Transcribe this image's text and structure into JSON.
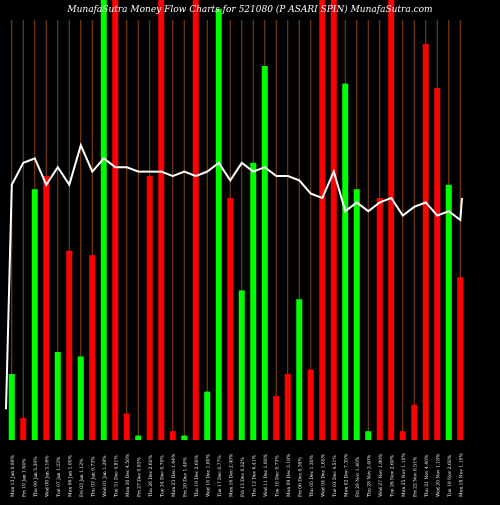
{
  "chart_data": {
    "type": "bar",
    "title": "MunafaSutra  Money Flow  Charts for 521080                    (P                    ASARI SPIN) MunafaSutra.com",
    "xlabel": "",
    "ylabel": "",
    "ylim": [
      0,
      100
    ],
    "grid": true,
    "legend": "none",
    "colors": {
      "up": "#00ff00",
      "down": "#ff0000",
      "line": "#ffffff",
      "grid": "#8b4513",
      "background": "#000000",
      "text": "#ffffff"
    },
    "categories": [
      "Mon 13 Jan 0.99%",
      "Fri 10 Jan 1.64%",
      "Thu 09 Jan 5.20%",
      "Wed 08 Jan 3.16%",
      "Tue 07 Jan 1.23%",
      "Mon 06 Jan 1.00%",
      "Fri 03 Jan 1.12%",
      "Thu 02 Jan 0.73%",
      "Wed 01 Jan 1.29%",
      "Tue 31 Dec 4.81%",
      "Mon 30 Dec 4.50%",
      "Fri 27 Dec 0.83%",
      "Thu 26 Dec 2.60%",
      "Tue 24 Dec 0.70%",
      "Mon 23 Dec 1.64%",
      "Fri 20 Dec 1.40%",
      "Thu 19 Dec 2.60%",
      "Wed 18 Dec 1.80%",
      "Tue 17 Dec 0.77%",
      "Mon 16 Dec 2.40%",
      "Fri 13 Dec 0.22%",
      "Thu 12 Dec 6.41%",
      "Wed 11 Dec 1.80%",
      "Tue 10 Dec 0.73%",
      "Mon 09 Dec 3.18%",
      "Fri 06 Dec 0.39%",
      "Thu 05 Dec 1.30%",
      "Wed 04 Dec 1.65%",
      "Tue 03 Dec 4.51%",
      "Mon 02 Dec 7.35%",
      "Fri 29 Nov 1.40%",
      "Thu 28 Nov 2.40%",
      "Wed 27 Nov 1.80%",
      "Tue 26 Nov 2.60%",
      "Mon 25 Nov 1.10%",
      "Fri 22 Nov 0.51%",
      "Thu 21 Nov 4.40%",
      "Wed 20 Nov 1.18%",
      "Tue 19 Nov 2.60%",
      "Mon 18 Nov 1.10%"
    ],
    "bar_colors": [
      "green",
      "red",
      "green",
      "red",
      "green",
      "red",
      "green",
      "red",
      "green",
      "red",
      "red",
      "green",
      "red",
      "red",
      "red",
      "green",
      "red",
      "green",
      "green",
      "red",
      "green",
      "green",
      "green",
      "red",
      "red",
      "green",
      "red",
      "red",
      "red",
      "green",
      "green",
      "green",
      "red",
      "red",
      "red",
      "red",
      "red",
      "red",
      "green",
      "red"
    ],
    "values": [
      15,
      5,
      57,
      60,
      20,
      43,
      19,
      42,
      100,
      100,
      6,
      1,
      60,
      100,
      2,
      1,
      100,
      11,
      98,
      55,
      34,
      63,
      85,
      10,
      15,
      32,
      16,
      100,
      100,
      81,
      57,
      2,
      55,
      100,
      2,
      8,
      90,
      80,
      58,
      37
    ],
    "line_values": [
      58,
      63,
      64,
      58,
      62,
      58,
      67,
      61,
      64,
      62,
      62,
      61,
      61,
      61,
      60,
      61,
      60,
      61,
      63,
      59,
      63,
      61,
      62,
      60,
      60,
      59,
      56,
      55,
      61,
      52,
      54,
      52,
      54,
      55,
      51,
      53,
      54,
      51,
      52,
      50
    ],
    "line_start": 7,
    "line_last": 55
  }
}
